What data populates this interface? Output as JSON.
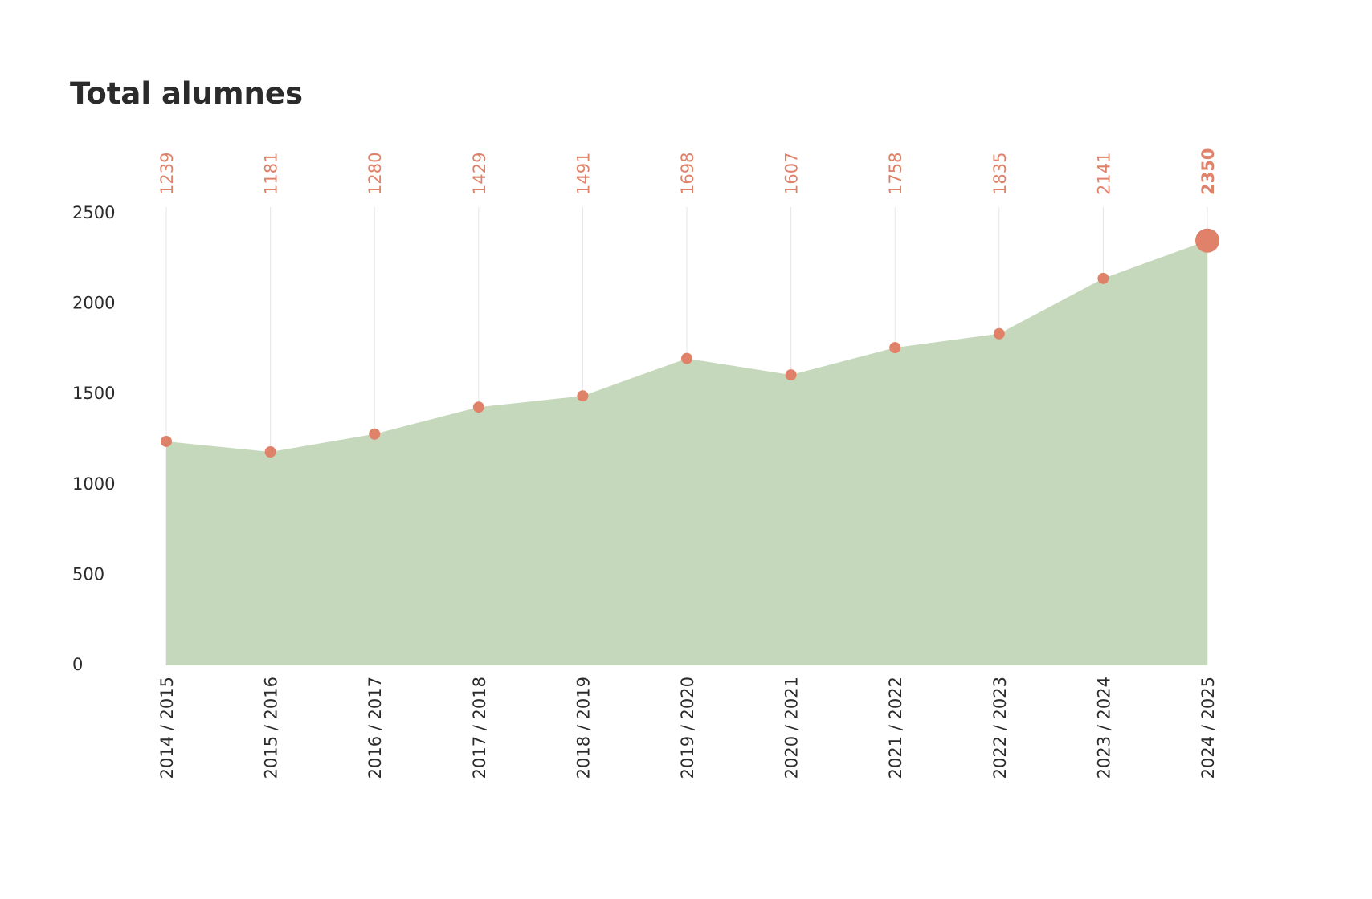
{
  "chart_data": {
    "type": "area",
    "title": "Total alumnes",
    "xlabel": "",
    "ylabel": "",
    "categories": [
      "2014 / 2015",
      "2015 / 2016",
      "2016 / 2017",
      "2017 / 2018",
      "2018 / 2019",
      "2019 / 2020",
      "2020 / 2021",
      "2021 / 2022",
      "2022 / 2023",
      "2023 / 2024",
      "2024 / 2025"
    ],
    "series": [
      {
        "values": [
          1239,
          1181,
          1280,
          1429,
          1491,
          1698,
          1607,
          1758,
          1835,
          2141,
          2350
        ]
      }
    ],
    "value_labels": [
      "1239",
      "1181",
      "1280",
      "1429",
      "1491",
      "1698",
      "1607",
      "1758",
      "1835",
      "2141",
      "2350"
    ],
    "yticks": [
      "0",
      "500",
      "1000",
      "1500",
      "2000",
      "2500"
    ],
    "ylim": [
      0,
      2500
    ],
    "grid": "vertical",
    "legend": "none",
    "colors": {
      "area": "#c6d8bc",
      "marker": "#e0826a",
      "value_label": "#e0826a",
      "gridline": "#e6e6e6",
      "text": "#2b2b2b"
    }
  }
}
